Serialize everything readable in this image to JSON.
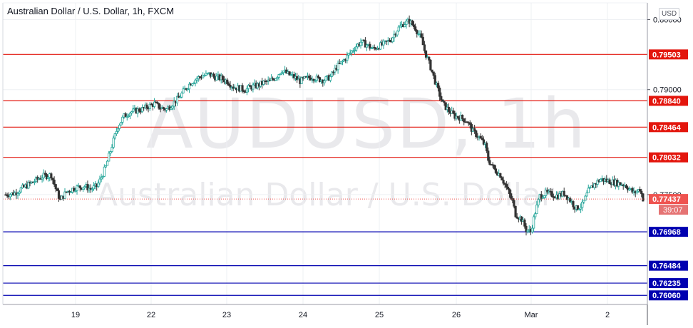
{
  "title": "Australian Dollar / U.S. Dollar, 1h, FXCM",
  "watermark": {
    "symbol": "AUDUSD, 1h",
    "name": "Australian Dollar / U.S. Dollar"
  },
  "currency_button": "USD",
  "countdown": "39:07",
  "colors": {
    "up": "#26a69a",
    "down": "#ef5350",
    "candle_body_up": "#ffffff",
    "resistance": "#e3160d",
    "support": "#0000b0",
    "grid": "#eef0f3",
    "axis_text": "#131722"
  },
  "chart_data": {
    "type": "candlestick",
    "symbol": "AUDUSD",
    "timeframe": "1h",
    "source": "FXCM",
    "ylim": [
      0.7593,
      0.8024
    ],
    "y_ticks": [
      {
        "value": 0.8,
        "label": "0.80000"
      },
      {
        "value": 0.79,
        "label": "0.79000"
      },
      {
        "value": 0.775,
        "label": "0.77500"
      }
    ],
    "x_ticks": [
      "19",
      "22",
      "23",
      "24",
      "25",
      "26",
      "Mar",
      "2"
    ],
    "current_price": {
      "value": 0.77437,
      "label": "0.77437"
    },
    "horizontal_levels": [
      {
        "value": 0.79503,
        "label": "0.79503",
        "kind": "resistance"
      },
      {
        "value": 0.7884,
        "label": "0.78840",
        "kind": "resistance"
      },
      {
        "value": 0.78464,
        "label": "0.78464",
        "kind": "resistance"
      },
      {
        "value": 0.78032,
        "label": "0.78032",
        "kind": "resistance"
      },
      {
        "value": 0.76968,
        "label": "0.76968",
        "kind": "support"
      },
      {
        "value": 0.76484,
        "label": "0.76484",
        "kind": "support"
      },
      {
        "value": 0.76235,
        "label": "0.76235",
        "kind": "support"
      },
      {
        "value": 0.7606,
        "label": "0.76060",
        "kind": "support"
      }
    ],
    "close_path": [
      [
        0,
        0.775
      ],
      [
        6,
        0.7752
      ],
      [
        10,
        0.7758
      ],
      [
        18,
        0.7768
      ],
      [
        24,
        0.7776
      ],
      [
        30,
        0.7778
      ],
      [
        34,
        0.7752
      ],
      [
        36,
        0.7742
      ],
      [
        40,
        0.7754
      ],
      [
        46,
        0.776
      ],
      [
        52,
        0.7762
      ],
      [
        56,
        0.7758
      ],
      [
        60,
        0.7762
      ],
      [
        62,
        0.777
      ],
      [
        66,
        0.779
      ],
      [
        70,
        0.782
      ],
      [
        74,
        0.7848
      ],
      [
        78,
        0.7862
      ],
      [
        82,
        0.7868
      ],
      [
        86,
        0.787
      ],
      [
        90,
        0.7872
      ],
      [
        94,
        0.7876
      ],
      [
        98,
        0.788
      ],
      [
        102,
        0.7874
      ],
      [
        106,
        0.7872
      ],
      [
        110,
        0.788
      ],
      [
        114,
        0.7888
      ],
      [
        118,
        0.79
      ],
      [
        122,
        0.791
      ],
      [
        126,
        0.7916
      ],
      [
        130,
        0.792
      ],
      [
        134,
        0.7922
      ],
      [
        138,
        0.7918
      ],
      [
        142,
        0.7916
      ],
      [
        146,
        0.7912
      ],
      [
        150,
        0.7904
      ],
      [
        154,
        0.7902
      ],
      [
        158,
        0.79
      ],
      [
        162,
        0.7904
      ],
      [
        166,
        0.7906
      ],
      [
        170,
        0.791
      ],
      [
        174,
        0.7912
      ],
      [
        178,
        0.7918
      ],
      [
        182,
        0.7928
      ],
      [
        186,
        0.7922
      ],
      [
        190,
        0.7918
      ],
      [
        194,
        0.7912
      ],
      [
        198,
        0.7916
      ],
      [
        202,
        0.7918
      ],
      [
        206,
        0.7915
      ],
      [
        210,
        0.7914
      ],
      [
        214,
        0.7918
      ],
      [
        218,
        0.7932
      ],
      [
        222,
        0.794
      ],
      [
        226,
        0.795
      ],
      [
        230,
        0.796
      ],
      [
        234,
        0.7968
      ],
      [
        238,
        0.7964
      ],
      [
        242,
        0.7958
      ],
      [
        246,
        0.7962
      ],
      [
        250,
        0.7966
      ],
      [
        254,
        0.7972
      ],
      [
        258,
        0.7986
      ],
      [
        262,
        0.7994
      ],
      [
        266,
        0.7998
      ],
      [
        270,
        0.7988
      ],
      [
        274,
        0.7972
      ],
      [
        276,
        0.7956
      ],
      [
        280,
        0.7932
      ],
      [
        284,
        0.7905
      ],
      [
        288,
        0.788
      ],
      [
        292,
        0.787
      ],
      [
        296,
        0.7862
      ],
      [
        300,
        0.786
      ],
      [
        304,
        0.7855
      ],
      [
        308,
        0.784
      ],
      [
        312,
        0.7832
      ],
      [
        316,
        0.782
      ],
      [
        318,
        0.78
      ],
      [
        322,
        0.7786
      ],
      [
        326,
        0.7778
      ],
      [
        330,
        0.776
      ],
      [
        334,
        0.774
      ],
      [
        336,
        0.7722
      ],
      [
        340,
        0.7715
      ],
      [
        343,
        0.77
      ],
      [
        346,
        0.7697
      ],
      [
        349,
        0.7725
      ],
      [
        352,
        0.7748
      ],
      [
        356,
        0.7752
      ],
      [
        360,
        0.775
      ],
      [
        364,
        0.7748
      ],
      [
        368,
        0.7752
      ],
      [
        372,
        0.7742
      ],
      [
        376,
        0.773
      ],
      [
        380,
        0.7735
      ],
      [
        384,
        0.7755
      ],
      [
        388,
        0.7765
      ],
      [
        392,
        0.7772
      ],
      [
        396,
        0.777
      ],
      [
        400,
        0.7768
      ],
      [
        404,
        0.7766
      ],
      [
        408,
        0.7764
      ],
      [
        410,
        0.776
      ],
      [
        414,
        0.7752
      ],
      [
        418,
        0.7758
      ],
      [
        420,
        0.7744
      ]
    ]
  }
}
